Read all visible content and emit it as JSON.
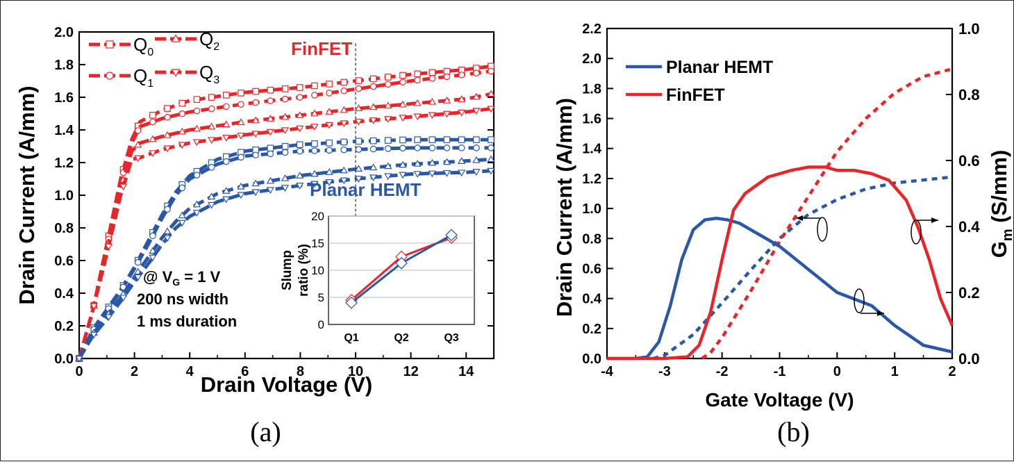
{
  "colors": {
    "red": "#e8262a",
    "blue": "#2a57a8"
  },
  "chart_data": [
    {
      "type": "line",
      "caption": "(a)",
      "xlabel": "Drain Voltage (V)",
      "ylabel": "Drain Current (A/mm)",
      "xlim": [
        0,
        15
      ],
      "ylim": [
        0,
        2.0
      ],
      "xticks": [
        "0",
        "2",
        "4",
        "6",
        "8",
        "10",
        "12",
        "14"
      ],
      "yticks": [
        "0.0",
        "0.2",
        "0.4",
        "0.6",
        "0.8",
        "1.0",
        "1.2",
        "1.4",
        "1.6",
        "1.8",
        "2.0"
      ],
      "legend": [
        {
          "label": "Q",
          "sub": "0",
          "marker": "square"
        },
        {
          "label": "Q",
          "sub": "2",
          "marker": "triangle-up"
        },
        {
          "label": "Q",
          "sub": "1",
          "marker": "circle"
        },
        {
          "label": "Q",
          "sub": "3",
          "marker": "triangle-down"
        }
      ],
      "annotations": {
        "finfet": "FinFET",
        "planar": "Planar HEMT",
        "cond_prefix": "@ V",
        "cond_sub": "G",
        "cond_suffix": " = 1 V",
        "width": "200 ns width",
        "duration": "1 ms duration"
      },
      "series": [
        {
          "name": "FinFET Q0",
          "marker": "square",
          "x": [
            0,
            0.5,
            1,
            1.5,
            1.9,
            2.2,
            3,
            4,
            6,
            8,
            10,
            12,
            14,
            14.9
          ],
          "y": [
            0,
            0.3,
            0.7,
            1.1,
            1.34,
            1.45,
            1.52,
            1.58,
            1.63,
            1.66,
            1.7,
            1.74,
            1.77,
            1.79
          ]
        },
        {
          "name": "FinFET Q1",
          "marker": "circle",
          "x": [
            0,
            0.5,
            1,
            1.5,
            1.9,
            2.2,
            3,
            4,
            6,
            8,
            10,
            12,
            14,
            14.9
          ],
          "y": [
            0,
            0.3,
            0.68,
            1.08,
            1.32,
            1.42,
            1.47,
            1.51,
            1.56,
            1.6,
            1.65,
            1.7,
            1.74,
            1.76
          ]
        },
        {
          "name": "FinFET Q2",
          "marker": "triangle-up",
          "x": [
            0,
            0.5,
            1,
            1.5,
            1.9,
            2.2,
            3,
            4,
            6,
            8,
            10,
            12,
            14,
            14.9
          ],
          "y": [
            0,
            0.3,
            0.66,
            1.04,
            1.27,
            1.32,
            1.36,
            1.4,
            1.45,
            1.49,
            1.53,
            1.56,
            1.59,
            1.62
          ]
        },
        {
          "name": "FinFET Q3",
          "marker": "triangle-down",
          "x": [
            0,
            0.5,
            1,
            1.5,
            1.9,
            2.2,
            3,
            4,
            6,
            8,
            10,
            12,
            14,
            14.9
          ],
          "y": [
            0,
            0.3,
            0.64,
            1.0,
            1.22,
            1.23,
            1.28,
            1.32,
            1.37,
            1.41,
            1.45,
            1.48,
            1.51,
            1.53
          ]
        },
        {
          "name": "Planar HEMT Q0",
          "marker": "square",
          "x": [
            0,
            0.5,
            1,
            1.5,
            2,
            2.5,
            3,
            3.5,
            4,
            5,
            6,
            8,
            10,
            12,
            14,
            14.9
          ],
          "y": [
            0,
            0.18,
            0.3,
            0.42,
            0.56,
            0.72,
            0.88,
            1.02,
            1.12,
            1.22,
            1.27,
            1.31,
            1.33,
            1.34,
            1.34,
            1.34
          ]
        },
        {
          "name": "Planar HEMT Q1",
          "marker": "circle",
          "x": [
            0,
            0.5,
            1,
            1.5,
            2,
            2.5,
            3,
            3.5,
            4,
            5,
            6,
            8,
            10,
            12,
            14,
            14.9
          ],
          "y": [
            0,
            0.17,
            0.29,
            0.41,
            0.55,
            0.7,
            0.86,
            1.0,
            1.1,
            1.19,
            1.24,
            1.27,
            1.28,
            1.29,
            1.29,
            1.29
          ]
        },
        {
          "name": "Planar HEMT Q2",
          "marker": "triangle-up",
          "x": [
            0,
            0.5,
            1,
            1.5,
            2,
            2.5,
            3,
            3.5,
            4,
            5,
            6,
            8,
            10,
            12,
            14,
            14.9
          ],
          "y": [
            0,
            0.15,
            0.26,
            0.37,
            0.5,
            0.62,
            0.74,
            0.84,
            0.92,
            1.01,
            1.06,
            1.12,
            1.16,
            1.19,
            1.21,
            1.22
          ]
        },
        {
          "name": "Planar HEMT Q3",
          "marker": "triangle-down",
          "x": [
            0,
            0.5,
            1,
            1.5,
            2,
            2.5,
            3,
            3.5,
            4,
            5,
            6,
            8,
            10,
            12,
            14,
            14.9
          ],
          "y": [
            0,
            0.14,
            0.24,
            0.35,
            0.47,
            0.58,
            0.7,
            0.8,
            0.87,
            0.96,
            1.01,
            1.06,
            1.1,
            1.13,
            1.14,
            1.15
          ]
        }
      ],
      "inset": {
        "type": "line",
        "ylabel_line1": "Slump",
        "ylabel_line2": "ratio (%)",
        "categories": [
          "Q1",
          "Q2",
          "Q3"
        ],
        "ylim": [
          0,
          20
        ],
        "yticks": [
          "0",
          "5",
          "10",
          "15",
          "20"
        ],
        "series": [
          {
            "name": "FinFET",
            "values": [
              4.5,
              12.5,
              16
            ]
          },
          {
            "name": "Planar HEMT",
            "values": [
              4,
              11.3,
              16.5
            ]
          }
        ]
      }
    },
    {
      "type": "line",
      "caption": "(b)",
      "xlabel": "Gate Voltage (V)",
      "ylabel": "Drain Current (A/mm)",
      "ylabel_right": "G",
      "ylabel_right_sub": "m",
      "ylabel_right_suffix": " (S/mm)",
      "xlim": [
        -4,
        2
      ],
      "ylim": [
        0,
        2.2
      ],
      "ylim_right": [
        0,
        1.0
      ],
      "xticks": [
        "-4",
        "-3",
        "-2",
        "-1",
        "0",
        "1",
        "2"
      ],
      "yticks": [
        "0.0",
        "0.2",
        "0.4",
        "0.6",
        "0.8",
        "1.0",
        "1.2",
        "1.4",
        "1.6",
        "1.8",
        "2.0",
        "2.2"
      ],
      "yticks_right": [
        "0.0",
        "0.2",
        "0.4",
        "0.6",
        "0.8",
        "1.0"
      ],
      "legend": [
        {
          "label": "Planar HEMT"
        },
        {
          "label": "FinFET"
        }
      ],
      "series": [
        {
          "name": "Planar HEMT",
          "quantity": "drain_current",
          "style": "dotted",
          "x": [
            -3.2,
            -3.0,
            -2.5,
            -2.0,
            -1.5,
            -1.0,
            -0.5,
            0.0,
            0.5,
            1.0,
            1.5,
            2.0
          ],
          "y": [
            0.0,
            0.02,
            0.16,
            0.37,
            0.59,
            0.8,
            0.96,
            1.06,
            1.13,
            1.17,
            1.19,
            1.21
          ]
        },
        {
          "name": "FinFET",
          "quantity": "drain_current",
          "style": "dotted",
          "x": [
            -2.35,
            -2.2,
            -2.0,
            -1.5,
            -1.0,
            -0.5,
            0.0,
            0.5,
            1.0,
            1.5,
            2.0
          ],
          "y": [
            0.0,
            0.04,
            0.14,
            0.45,
            0.78,
            1.08,
            1.38,
            1.6,
            1.77,
            1.88,
            1.93
          ]
        },
        {
          "name": "Planar HEMT",
          "quantity": "gm",
          "style": "solid",
          "x": [
            -4.0,
            -3.5,
            -3.3,
            -3.1,
            -2.9,
            -2.7,
            -2.5,
            -2.3,
            -2.1,
            -1.9,
            -1.7,
            -1.5,
            -1.0,
            -0.5,
            0.0,
            0.3,
            0.6,
            1.0,
            1.5,
            2.0
          ],
          "y": [
            0.0,
            0.0,
            0.005,
            0.05,
            0.16,
            0.3,
            0.39,
            0.42,
            0.425,
            0.42,
            0.41,
            0.39,
            0.34,
            0.27,
            0.2,
            0.18,
            0.16,
            0.1,
            0.04,
            0.02
          ]
        },
        {
          "name": "FinFET",
          "quantity": "gm",
          "style": "solid",
          "x": [
            -4.0,
            -3.0,
            -2.6,
            -2.4,
            -2.2,
            -2.0,
            -1.8,
            -1.6,
            -1.2,
            -0.8,
            -0.5,
            -0.2,
            0.0,
            0.3,
            0.6,
            0.9,
            1.0,
            1.2,
            1.4,
            1.6,
            1.8,
            2.0
          ],
          "y": [
            0.0,
            0.0,
            0.005,
            0.04,
            0.14,
            0.3,
            0.45,
            0.5,
            0.55,
            0.57,
            0.58,
            0.58,
            0.57,
            0.57,
            0.56,
            0.54,
            0.52,
            0.48,
            0.4,
            0.3,
            0.18,
            0.1
          ]
        }
      ]
    }
  ]
}
